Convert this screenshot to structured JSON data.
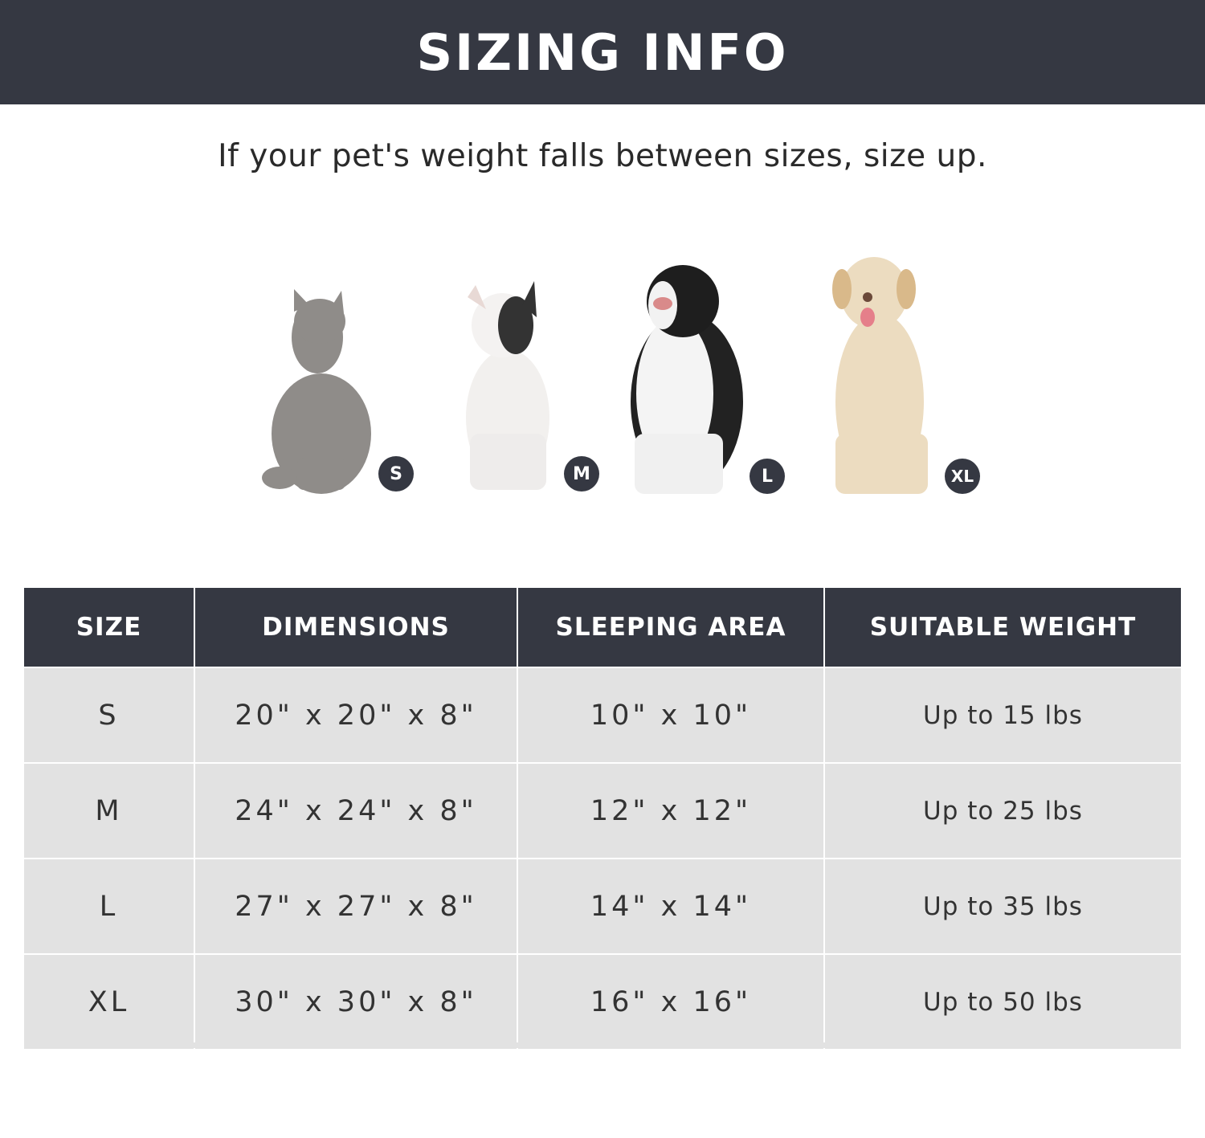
{
  "header": {
    "title": "SIZING INFO"
  },
  "subtitle": "If your pet's weight falls between sizes, size up.",
  "pets": [
    {
      "animal": "cat",
      "badge": "S"
    },
    {
      "animal": "french-bulldog",
      "badge": "M"
    },
    {
      "animal": "border-collie",
      "badge": "L"
    },
    {
      "animal": "labrador",
      "badge": "XL"
    }
  ],
  "colors": {
    "dark": "#353842",
    "row_bg": "#e2e2e2"
  },
  "table": {
    "headers": [
      "SIZE",
      "DIMENSIONS",
      "SLEEPING AREA",
      "SUITABLE WEIGHT"
    ],
    "rows": [
      [
        "S",
        "20\" x 20\" x 8\"",
        "10\" x 10\"",
        "Up to 15 lbs"
      ],
      [
        "M",
        "24\" x 24\" x 8\"",
        "12\" x 12\"",
        "Up to 25 lbs"
      ],
      [
        "L",
        "27\" x 27\" x 8\"",
        "14\" x 14\"",
        "Up to 35 lbs"
      ],
      [
        "XL",
        "30\" x 30\" x 8\"",
        "16\" x 16\"",
        "Up to 50 lbs"
      ]
    ]
  }
}
